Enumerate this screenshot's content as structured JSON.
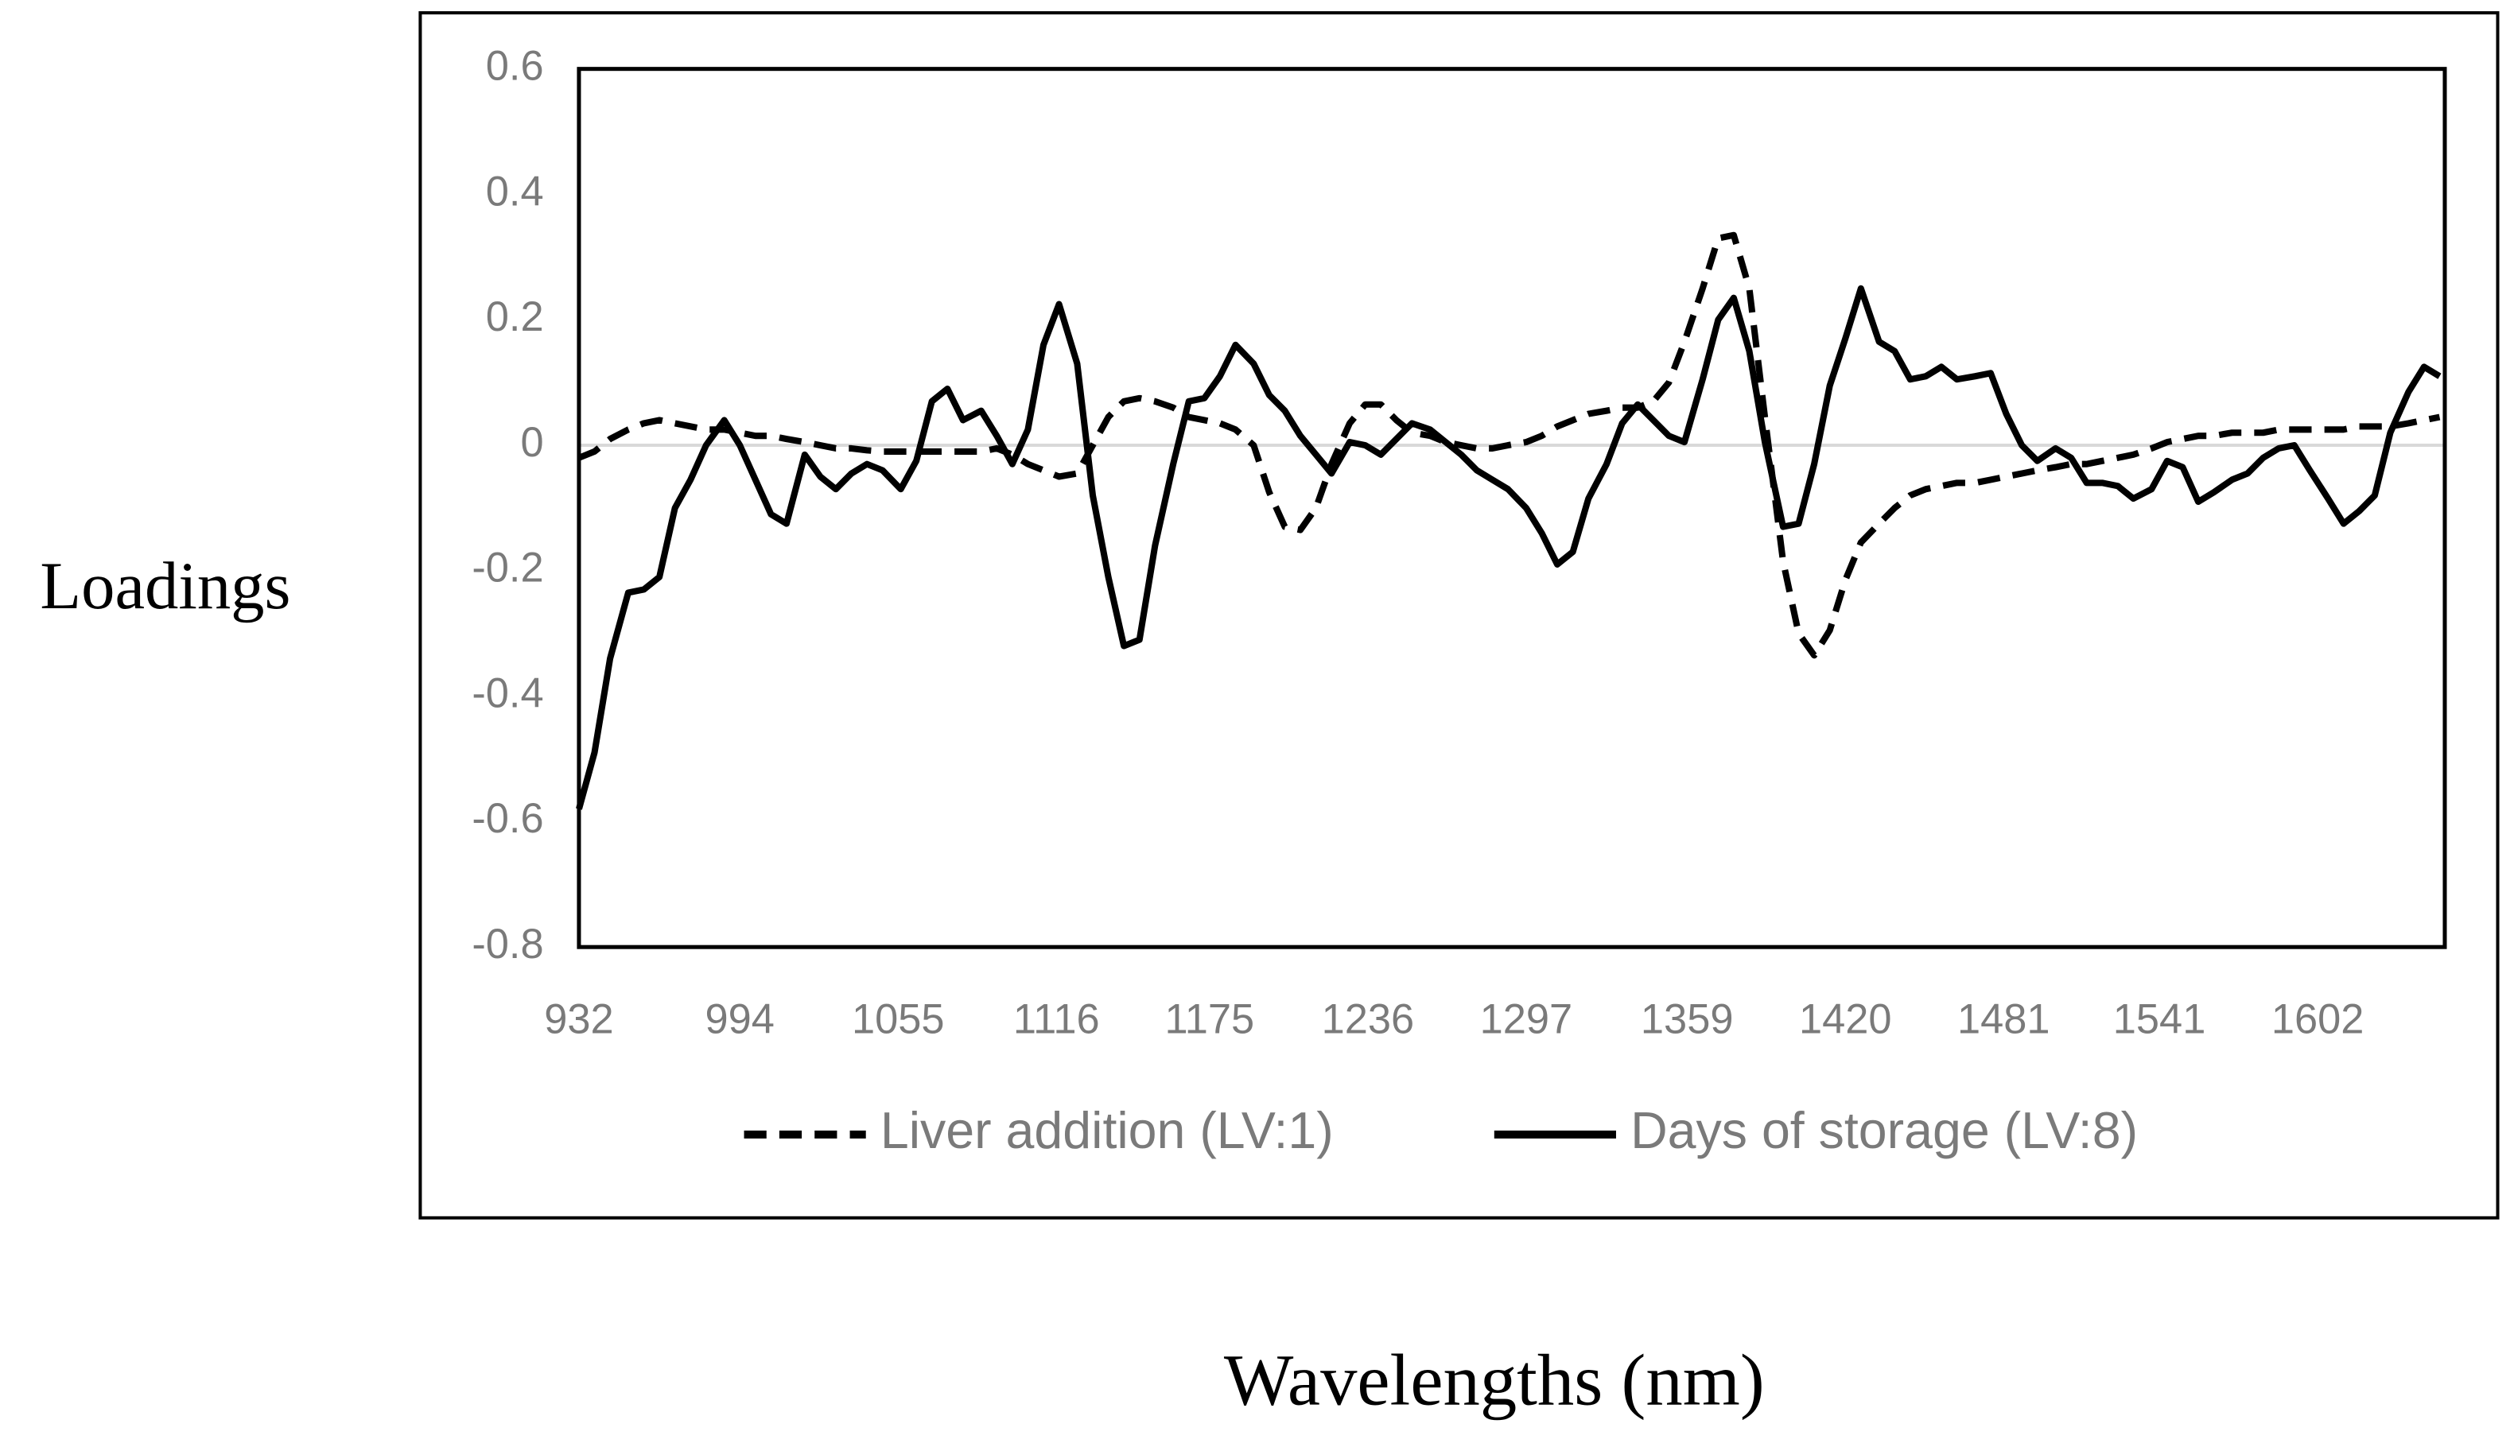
{
  "chart_data": {
    "type": "line",
    "y_label": "Loadings",
    "x_label": "Wavelengths (nm)",
    "xlim": [
      932,
      1651
    ],
    "xticks": [
      932,
      994,
      1055,
      1116,
      1175,
      1236,
      1297,
      1359,
      1420,
      1481,
      1541,
      1602
    ],
    "ylim": [
      -0.8,
      0.6
    ],
    "yticks": [
      -0.8,
      -0.6,
      -0.4,
      -0.2,
      0,
      0.2,
      0.4,
      0.6
    ],
    "grid": false,
    "legend": "bottom",
    "x": [
      932,
      938,
      944,
      951,
      957,
      963,
      969,
      975,
      981,
      988,
      994,
      1000,
      1006,
      1012,
      1019,
      1025,
      1031,
      1037,
      1043,
      1049,
      1056,
      1062,
      1068,
      1074,
      1080,
      1087,
      1093,
      1099,
      1105,
      1111,
      1117,
      1124,
      1130,
      1136,
      1142,
      1148,
      1154,
      1161,
      1167,
      1173,
      1179,
      1185,
      1192,
      1198,
      1204,
      1210,
      1216,
      1222,
      1229,
      1235,
      1241,
      1247,
      1253,
      1260,
      1266,
      1272,
      1278,
      1284,
      1290,
      1297,
      1303,
      1309,
      1315,
      1321,
      1328,
      1334,
      1340,
      1346,
      1352,
      1358,
      1365,
      1371,
      1377,
      1383,
      1389,
      1396,
      1402,
      1408,
      1414,
      1420,
      1426,
      1433,
      1439,
      1445,
      1451,
      1457,
      1463,
      1470,
      1476,
      1482,
      1488,
      1494,
      1501,
      1507,
      1513,
      1519,
      1525,
      1531,
      1538,
      1544,
      1550,
      1556,
      1562,
      1569,
      1575,
      1581,
      1587,
      1593,
      1599,
      1606,
      1612,
      1618,
      1624,
      1630,
      1637,
      1643,
      1649
    ],
    "series": [
      {
        "name": "Liver addition (LV:1)",
        "color": "#000000",
        "dash": true,
        "values": [
          -0.02,
          -0.01,
          0.01,
          0.025,
          0.035,
          0.04,
          0.035,
          0.03,
          0.025,
          0.025,
          0.02,
          0.015,
          0.015,
          0.01,
          0.005,
          0,
          -0.005,
          -0.005,
          -0.008,
          -0.01,
          -0.01,
          -0.01,
          -0.01,
          -0.01,
          -0.01,
          -0.01,
          -0.005,
          -0.015,
          -0.03,
          -0.04,
          -0.05,
          -0.045,
          0,
          0.045,
          0.07,
          0.075,
          0.07,
          0.06,
          0.045,
          0.04,
          0.035,
          0.025,
          0,
          -0.075,
          -0.13,
          -0.135,
          -0.1,
          -0.03,
          0.035,
          0.065,
          0.065,
          0.04,
          0.02,
          0.015,
          0.005,
          0,
          -0.005,
          -0.005,
          0,
          0.005,
          0.015,
          0.03,
          0.04,
          0.05,
          0.055,
          0.06,
          0.06,
          0.07,
          0.1,
          0.165,
          0.25,
          0.33,
          0.335,
          0.25,
          0.045,
          -0.185,
          -0.3,
          -0.335,
          -0.295,
          -0.215,
          -0.155,
          -0.125,
          -0.1,
          -0.08,
          -0.07,
          -0.065,
          -0.06,
          -0.06,
          -0.055,
          -0.05,
          -0.045,
          -0.04,
          -0.035,
          -0.03,
          -0.03,
          -0.025,
          -0.02,
          -0.015,
          -0.005,
          0.005,
          0.01,
          0.015,
          0.015,
          0.02,
          0.02,
          0.02,
          0.025,
          0.025,
          0.025,
          0.025,
          0.025,
          0.03,
          0.03,
          0.03,
          0.035,
          0.04,
          0.045
        ]
      },
      {
        "name": "Days of storage (LV:8)",
        "color": "#000000",
        "dash": false,
        "values": [
          -0.58,
          -0.49,
          -0.34,
          -0.235,
          -0.23,
          -0.21,
          -0.1,
          -0.055,
          0,
          0.04,
          0,
          -0.055,
          -0.11,
          -0.125,
          -0.015,
          -0.05,
          -0.07,
          -0.045,
          -0.03,
          -0.04,
          -0.07,
          -0.025,
          0.07,
          0.09,
          0.04,
          0.055,
          0.015,
          -0.03,
          0.025,
          0.16,
          0.225,
          0.13,
          -0.08,
          -0.21,
          -0.32,
          -0.31,
          -0.16,
          -0.03,
          0.07,
          0.075,
          0.11,
          0.16,
          0.13,
          0.08,
          0.055,
          0.015,
          -0.015,
          -0.045,
          0.005,
          0,
          -0.015,
          0.01,
          0.035,
          0.025,
          0.005,
          -0.015,
          -0.04,
          -0.055,
          -0.07,
          -0.1,
          -0.14,
          -0.19,
          -0.17,
          -0.085,
          -0.03,
          0.035,
          0.065,
          0.04,
          0.015,
          0.005,
          0.105,
          0.2,
          0.235,
          0.15,
          0.005,
          -0.13,
          -0.125,
          -0.03,
          0.095,
          0.17,
          0.25,
          0.165,
          0.15,
          0.105,
          0.11,
          0.125,
          0.105,
          0.11,
          0.115,
          0.05,
          0,
          -0.025,
          -0.005,
          -0.02,
          -0.06,
          -0.06,
          -0.065,
          -0.085,
          -0.07,
          -0.025,
          -0.035,
          -0.09,
          -0.075,
          -0.055,
          -0.045,
          -0.02,
          -0.005,
          0,
          -0.04,
          -0.085,
          -0.125,
          -0.105,
          -0.08,
          0.02,
          0.085,
          0.125,
          0.11
        ]
      }
    ]
  }
}
